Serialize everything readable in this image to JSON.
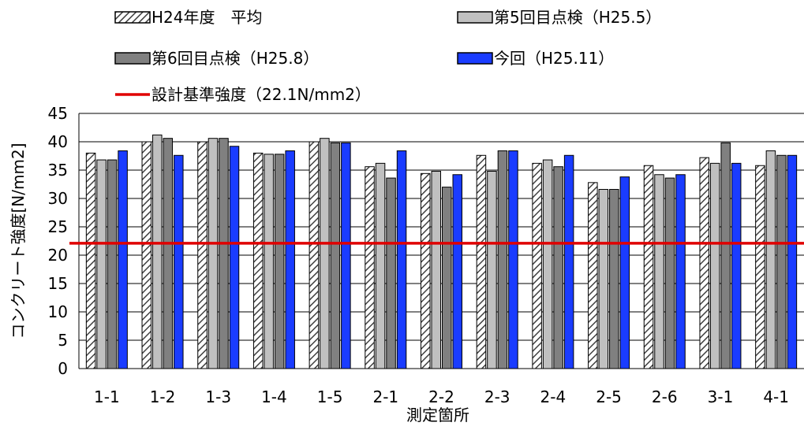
{
  "chart_data": {
    "type": "bar",
    "title": "",
    "xlabel": "測定箇所",
    "ylabel": "コンクリート強度[N/mm2]",
    "ylim": [
      0,
      45
    ],
    "yticks": [
      0,
      5,
      10,
      15,
      20,
      25,
      30,
      35,
      40,
      45
    ],
    "grid": true,
    "legend_position": "top",
    "categories": [
      "1-1",
      "1-2",
      "1-3",
      "1-4",
      "1-5",
      "2-1",
      "2-2",
      "2-3",
      "2-4",
      "2-5",
      "2-6",
      "3-1",
      "4-1"
    ],
    "series": [
      {
        "name": "H24年度　平均",
        "style": "hatched",
        "color": "#ffffff",
        "values": [
          38,
          40,
          40,
          38,
          40,
          35.6,
          34.4,
          37.6,
          36.2,
          32.8,
          35.8,
          37.2,
          35.8
        ]
      },
      {
        "name": "第5回目点検（H25.5）",
        "style": "solid",
        "color": "#c0c0c0",
        "values": [
          36.8,
          41.2,
          40.6,
          37.8,
          40.6,
          36.2,
          34.8,
          34.8,
          36.8,
          31.6,
          34.2,
          36.2,
          38.4
        ]
      },
      {
        "name": "第6回目点検（H25.8）",
        "style": "solid",
        "color": "#808080",
        "values": [
          36.8,
          40.6,
          40.6,
          37.8,
          39.8,
          33.6,
          32,
          38.4,
          35.6,
          31.6,
          33.6,
          39.8,
          37.6
        ]
      },
      {
        "name": "今回（H25.11）",
        "style": "solid",
        "color": "#1a3cff",
        "values": [
          38.4,
          37.6,
          39.2,
          38.4,
          39.8,
          38.4,
          34.2,
          38.4,
          37.6,
          33.8,
          34.2,
          36.2,
          37.6
        ]
      }
    ],
    "reference_line": {
      "name": "設計基準強度（22.1N/mm2）",
      "value": 22.1,
      "color": "#e00000"
    }
  }
}
